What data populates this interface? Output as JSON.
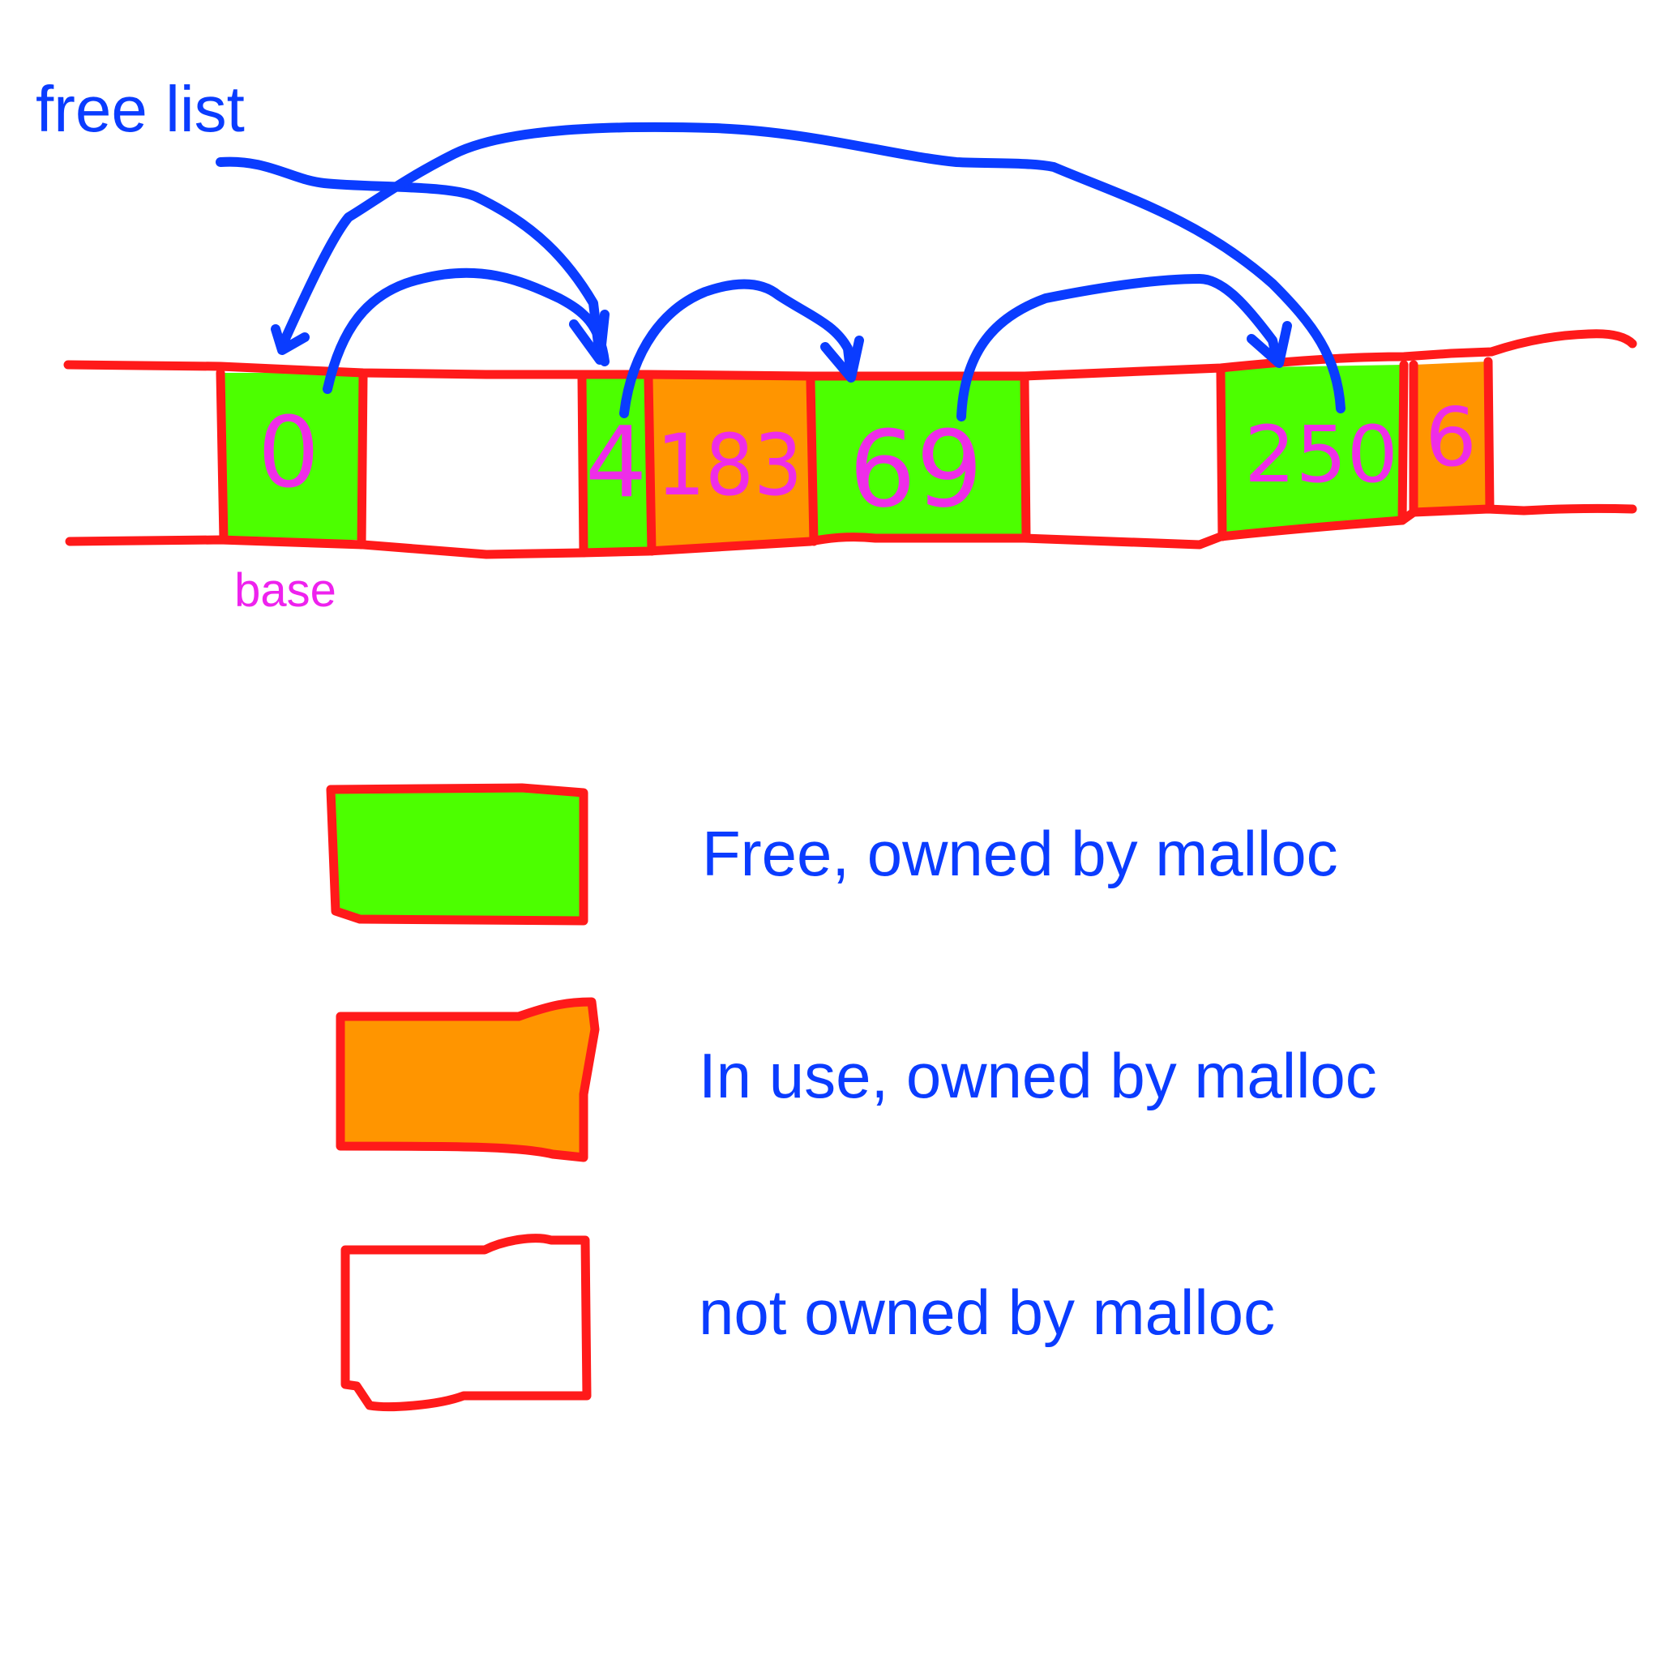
{
  "labels": {
    "free_list": "free list",
    "base": "base"
  },
  "blocks": [
    {
      "id": "b1",
      "kind": "free",
      "label": "0"
    },
    {
      "id": "b2",
      "kind": "not_owned",
      "label": ""
    },
    {
      "id": "b3",
      "kind": "free",
      "label": "4"
    },
    {
      "id": "b4",
      "kind": "in_use",
      "label": "183"
    },
    {
      "id": "b5",
      "kind": "free",
      "label": "69"
    },
    {
      "id": "b6",
      "kind": "not_owned",
      "label": ""
    },
    {
      "id": "b7",
      "kind": "free",
      "label": "250"
    },
    {
      "id": "b8",
      "kind": "in_use",
      "label": "6"
    }
  ],
  "legend": [
    {
      "kind": "free",
      "text": "Free, owned by malloc"
    },
    {
      "kind": "in_use",
      "text": "In use, owned by malloc"
    },
    {
      "kind": "not_owned",
      "text": "not owned by malloc"
    }
  ],
  "colors": {
    "free": "#4cff00",
    "in_use": "#ff9500",
    "not_owned": "#ffffff",
    "border": "#ff1a1a",
    "arrow": "#0a3cff",
    "label_text": "#ee2de8",
    "text_blue": "#0a3cff",
    "base_text": "#ee22ee"
  },
  "icons": {
    "arrow": "curved-pointer-arrow"
  }
}
